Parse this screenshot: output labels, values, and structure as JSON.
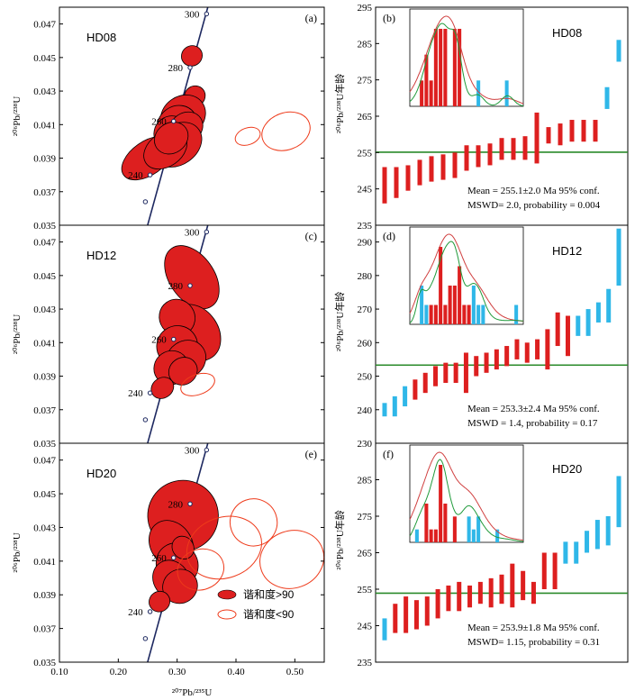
{
  "figure": {
    "concordia_ylabel_html": "²⁰⁶Pb/²³⁸U",
    "concordia_xlabel": "²⁰⁷Pb/²³⁵U",
    "age_ylabel": "²⁰⁶Pb/²³⁸U年龄",
    "x_ticks": [
      "0.10",
      "0.20",
      "0.30",
      "0.40",
      "0.50"
    ],
    "legend": {
      "concordant": "谐和度>90",
      "discordant": "谐和度<90"
    },
    "colors": {
      "concordant": "#dd1f1f",
      "discordant": "#ee3a1a",
      "excluded": "#2fb7e8",
      "mean_line": "#2a8a2a",
      "concordia": "#1d2860",
      "kde_red": "#d04040",
      "kde_green": "#1f9a3a"
    }
  },
  "chart_data": [
    {
      "type": "scatter",
      "panel": "(a)",
      "sample": "HD08",
      "kind": "concordia",
      "xlim": [
        0.1,
        0.55
      ],
      "ylim": [
        0.035,
        0.048
      ],
      "y_ticks": [
        "0.035",
        "0.037",
        "0.039",
        "0.041",
        "0.043",
        "0.045",
        "0.047"
      ],
      "concordia_ages": [
        "240",
        "260",
        "280",
        "300"
      ],
      "concordant_ellipses": [
        {
          "x": 0.325,
          "y": 0.0451,
          "rx": 0.018,
          "ry": 0.0006
        },
        {
          "x": 0.33,
          "y": 0.0427,
          "rx": 0.018,
          "ry": 0.0006
        },
        {
          "x": 0.31,
          "y": 0.0415,
          "rx": 0.04,
          "ry": 0.0012
        },
        {
          "x": 0.3,
          "y": 0.041,
          "rx": 0.035,
          "ry": 0.0011
        },
        {
          "x": 0.29,
          "y": 0.0405,
          "rx": 0.03,
          "ry": 0.001
        },
        {
          "x": 0.315,
          "y": 0.0408,
          "rx": 0.03,
          "ry": 0.0009
        },
        {
          "x": 0.3,
          "y": 0.0398,
          "rx": 0.045,
          "ry": 0.0012
        },
        {
          "x": 0.25,
          "y": 0.039,
          "rx": 0.05,
          "ry": 0.001
        },
        {
          "x": 0.28,
          "y": 0.0395,
          "rx": 0.04,
          "ry": 0.001
        },
        {
          "x": 0.29,
          "y": 0.0402,
          "rx": 0.03,
          "ry": 0.0009
        }
      ],
      "discordant_ellipses": [
        {
          "x": 0.42,
          "y": 0.0403,
          "rx": 0.022,
          "ry": 0.0005
        },
        {
          "x": 0.485,
          "y": 0.0406,
          "rx": 0.042,
          "ry": 0.0011
        }
      ]
    },
    {
      "type": "bar",
      "panel": "(b)",
      "sample": "HD08",
      "kind": "age-bars",
      "ylim": [
        235,
        295
      ],
      "y_ticks": [
        "235",
        "245",
        "255",
        "265",
        "275",
        "285",
        "295"
      ],
      "mean": 255.1,
      "stat_line1": "Mean = 255.1±2.0 Ma  95% conf.",
      "stat_line2": "MSWD= 2.0, probability = 0.004",
      "bars": [
        {
          "lo": 241.0,
          "hi": 251.0,
          "excluded": false
        },
        {
          "lo": 242.5,
          "hi": 251.0,
          "excluded": false
        },
        {
          "lo": 244.5,
          "hi": 251.5,
          "excluded": false
        },
        {
          "lo": 246.0,
          "hi": 253.0,
          "excluded": false
        },
        {
          "lo": 247.0,
          "hi": 254.0,
          "excluded": false
        },
        {
          "lo": 247.5,
          "hi": 254.5,
          "excluded": false
        },
        {
          "lo": 248.0,
          "hi": 255.0,
          "excluded": false
        },
        {
          "lo": 250.0,
          "hi": 257.0,
          "excluded": false
        },
        {
          "lo": 251.0,
          "hi": 257.0,
          "excluded": false
        },
        {
          "lo": 251.5,
          "hi": 257.5,
          "excluded": false
        },
        {
          "lo": 253.0,
          "hi": 259.0,
          "excluded": false
        },
        {
          "lo": 253.0,
          "hi": 259.0,
          "excluded": false
        },
        {
          "lo": 253.0,
          "hi": 259.5,
          "excluded": false
        },
        {
          "lo": 252.0,
          "hi": 266.0,
          "excluded": false
        },
        {
          "lo": 257.5,
          "hi": 262.0,
          "excluded": false
        },
        {
          "lo": 257.0,
          "hi": 263.0,
          "excluded": false
        },
        {
          "lo": 258.0,
          "hi": 264.0,
          "excluded": false
        },
        {
          "lo": 258.0,
          "hi": 264.0,
          "excluded": false
        },
        {
          "lo": 258.0,
          "hi": 264.0,
          "excluded": false
        },
        {
          "lo": 267.0,
          "hi": 273.0,
          "excluded": true
        },
        {
          "lo": 280.0,
          "hi": 286.0,
          "excluded": true
        }
      ]
    },
    {
      "type": "scatter",
      "panel": "(c)",
      "sample": "HD12",
      "kind": "concordia",
      "xlim": [
        0.1,
        0.55
      ],
      "ylim": [
        0.035,
        0.048
      ],
      "y_ticks": [
        "0.035",
        "0.037",
        "0.039",
        "0.041",
        "0.043",
        "0.045",
        "0.047"
      ],
      "concordia_ages": [
        "240",
        "260",
        "280",
        "300"
      ],
      "concordant_ellipses": [
        {
          "x": 0.325,
          "y": 0.0449,
          "rx": 0.038,
          "ry": 0.0021
        },
        {
          "x": 0.33,
          "y": 0.0416,
          "rx": 0.04,
          "ry": 0.0018
        },
        {
          "x": 0.3,
          "y": 0.0425,
          "rx": 0.03,
          "ry": 0.0011
        },
        {
          "x": 0.3,
          "y": 0.0408,
          "rx": 0.035,
          "ry": 0.0012
        },
        {
          "x": 0.315,
          "y": 0.04,
          "rx": 0.035,
          "ry": 0.0011
        },
        {
          "x": 0.29,
          "y": 0.0395,
          "rx": 0.03,
          "ry": 0.001
        },
        {
          "x": 0.31,
          "y": 0.0393,
          "rx": 0.025,
          "ry": 0.0008
        },
        {
          "x": 0.275,
          "y": 0.0383,
          "rx": 0.02,
          "ry": 0.0006
        }
      ],
      "discordant_ellipses": [
        {
          "x": 0.335,
          "y": 0.0385,
          "rx": 0.03,
          "ry": 0.0006
        }
      ]
    },
    {
      "type": "bar",
      "panel": "(d)",
      "sample": "HD12",
      "kind": "age-bars",
      "ylim": [
        230,
        295
      ],
      "y_ticks": [
        "230",
        "240",
        "250",
        "260",
        "270",
        "280",
        "290"
      ],
      "mean": 253.3,
      "stat_line1": "Mean = 253.3±2.4 Ma  95% conf.",
      "stat_line2": "MSWD = 1.4, probability = 0.17",
      "bars": [
        {
          "lo": 238.0,
          "hi": 242.0,
          "excluded": true
        },
        {
          "lo": 238.0,
          "hi": 244.0,
          "excluded": true
        },
        {
          "lo": 241.0,
          "hi": 247.0,
          "excluded": true
        },
        {
          "lo": 243.0,
          "hi": 249.0,
          "excluded": false
        },
        {
          "lo": 245.0,
          "hi": 251.0,
          "excluded": false
        },
        {
          "lo": 247.0,
          "hi": 253.0,
          "excluded": false
        },
        {
          "lo": 248.0,
          "hi": 254.0,
          "excluded": false
        },
        {
          "lo": 248.0,
          "hi": 254.0,
          "excluded": false
        },
        {
          "lo": 245.0,
          "hi": 257.0,
          "excluded": false
        },
        {
          "lo": 250.0,
          "hi": 256.0,
          "excluded": false
        },
        {
          "lo": 251.0,
          "hi": 257.0,
          "excluded": false
        },
        {
          "lo": 252.0,
          "hi": 258.0,
          "excluded": false
        },
        {
          "lo": 253.0,
          "hi": 259.0,
          "excluded": false
        },
        {
          "lo": 255.0,
          "hi": 261.0,
          "excluded": false
        },
        {
          "lo": 254.0,
          "hi": 260.0,
          "excluded": false
        },
        {
          "lo": 255.0,
          "hi": 261.0,
          "excluded": false
        },
        {
          "lo": 252.0,
          "hi": 264.0,
          "excluded": false
        },
        {
          "lo": 259.0,
          "hi": 269.0,
          "excluded": false
        },
        {
          "lo": 256.0,
          "hi": 268.0,
          "excluded": false
        },
        {
          "lo": 262.0,
          "hi": 268.0,
          "excluded": true
        },
        {
          "lo": 262.0,
          "hi": 270.0,
          "excluded": true
        },
        {
          "lo": 266.0,
          "hi": 272.0,
          "excluded": true
        },
        {
          "lo": 266.0,
          "hi": 276.0,
          "excluded": true
        },
        {
          "lo": 277.0,
          "hi": 294.0,
          "excluded": true
        }
      ]
    },
    {
      "type": "scatter",
      "panel": "(e)",
      "sample": "HD20",
      "kind": "concordia",
      "xlim": [
        0.1,
        0.55
      ],
      "ylim": [
        0.035,
        0.048
      ],
      "y_ticks": [
        "0.035",
        "0.037",
        "0.039",
        "0.041",
        "0.043",
        "0.045",
        "0.047"
      ],
      "concordia_ages": [
        "240",
        "260",
        "280",
        "300"
      ],
      "concordant_ellipses": [
        {
          "x": 0.31,
          "y": 0.0437,
          "rx": 0.06,
          "ry": 0.0021
        },
        {
          "x": 0.29,
          "y": 0.042,
          "rx": 0.035,
          "ry": 0.0015
        },
        {
          "x": 0.3,
          "y": 0.0408,
          "rx": 0.035,
          "ry": 0.0013
        },
        {
          "x": 0.29,
          "y": 0.0399,
          "rx": 0.03,
          "ry": 0.0012
        },
        {
          "x": 0.305,
          "y": 0.0395,
          "rx": 0.03,
          "ry": 0.001
        },
        {
          "x": 0.31,
          "y": 0.0418,
          "rx": 0.018,
          "ry": 0.0007
        },
        {
          "x": 0.27,
          "y": 0.0386,
          "rx": 0.018,
          "ry": 0.0006
        }
      ],
      "discordant_ellipses": [
        {
          "x": 0.38,
          "y": 0.0418,
          "rx": 0.065,
          "ry": 0.0018
        },
        {
          "x": 0.43,
          "y": 0.0433,
          "rx": 0.04,
          "ry": 0.0014
        },
        {
          "x": 0.495,
          "y": 0.0411,
          "rx": 0.055,
          "ry": 0.0017
        },
        {
          "x": 0.34,
          "y": 0.0405,
          "rx": 0.04,
          "ry": 0.0012
        }
      ],
      "show_legend": true
    },
    {
      "type": "bar",
      "panel": "(f)",
      "sample": "HD20",
      "kind": "age-bars",
      "ylim": [
        235,
        295
      ],
      "y_ticks": [
        "235",
        "245",
        "255",
        "265",
        "275",
        "285"
      ],
      "mean": 253.9,
      "stat_line1": "Mean = 253.9±1.8 Ma  95% conf.",
      "stat_line2": "MSWD= 1.15, probability = 0.31",
      "bars": [
        {
          "lo": 241.0,
          "hi": 247.0,
          "excluded": true
        },
        {
          "lo": 243.0,
          "hi": 251.0,
          "excluded": false
        },
        {
          "lo": 243.0,
          "hi": 253.0,
          "excluded": false
        },
        {
          "lo": 244.0,
          "hi": 252.0,
          "excluded": false
        },
        {
          "lo": 245.0,
          "hi": 253.0,
          "excluded": false
        },
        {
          "lo": 247.0,
          "hi": 255.0,
          "excluded": false
        },
        {
          "lo": 249.0,
          "hi": 256.0,
          "excluded": false
        },
        {
          "lo": 249.0,
          "hi": 257.0,
          "excluded": false
        },
        {
          "lo": 250.0,
          "hi": 256.0,
          "excluded": false
        },
        {
          "lo": 251.0,
          "hi": 257.0,
          "excluded": false
        },
        {
          "lo": 250.0,
          "hi": 258.0,
          "excluded": false
        },
        {
          "lo": 251.0,
          "hi": 259.0,
          "excluded": false
        },
        {
          "lo": 250.0,
          "hi": 262.0,
          "excluded": false
        },
        {
          "lo": 252.0,
          "hi": 260.0,
          "excluded": false
        },
        {
          "lo": 251.0,
          "hi": 257.0,
          "excluded": false
        },
        {
          "lo": 255.0,
          "hi": 265.0,
          "excluded": false
        },
        {
          "lo": 255.0,
          "hi": 265.0,
          "excluded": false
        },
        {
          "lo": 262.0,
          "hi": 268.0,
          "excluded": true
        },
        {
          "lo": 262.0,
          "hi": 268.0,
          "excluded": true
        },
        {
          "lo": 265.0,
          "hi": 271.0,
          "excluded": true
        },
        {
          "lo": 266.0,
          "hi": 274.0,
          "excluded": true
        },
        {
          "lo": 267.0,
          "hi": 275.0,
          "excluded": true
        },
        {
          "lo": 272.0,
          "hi": 286.0,
          "excluded": true
        }
      ]
    }
  ]
}
